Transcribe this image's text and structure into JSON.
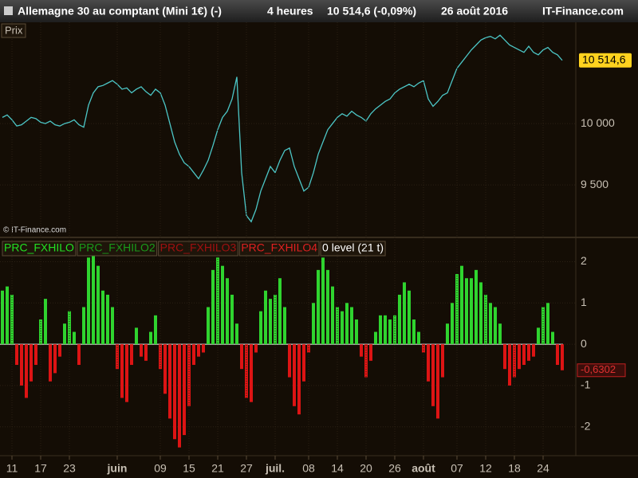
{
  "header": {
    "title": "Allemagne 30 au comptant (Mini 1€) (-)",
    "period": "4 heures",
    "quote": "10 514,6 (-0,09%)",
    "date": "26 août 2016",
    "brand": "IT-Finance.com"
  },
  "chart_data": [
    {
      "type": "line",
      "pane_label": "Prix",
      "copyright": "© IT-Finance.com",
      "color": "#4cc6c6",
      "last_value_label": "10 514,6",
      "ylim": [
        9085,
        10825
      ],
      "yticks": [
        {
          "value": 10000,
          "label": "10 000"
        },
        {
          "value": 9500,
          "label": "9 500"
        }
      ],
      "grid": true,
      "values": [
        10050,
        10070,
        10030,
        9980,
        9990,
        10020,
        10050,
        10040,
        10010,
        10000,
        10020,
        9990,
        9980,
        10000,
        10010,
        10030,
        9990,
        9970,
        10150,
        10250,
        10300,
        10310,
        10330,
        10350,
        10320,
        10280,
        10290,
        10250,
        10280,
        10300,
        10260,
        10230,
        10280,
        10250,
        10150,
        10000,
        9850,
        9750,
        9680,
        9650,
        9600,
        9550,
        9620,
        9700,
        9820,
        9950,
        10050,
        10100,
        10200,
        10380,
        9600,
        9250,
        9200,
        9300,
        9450,
        9550,
        9650,
        9600,
        9700,
        9780,
        9800,
        9650,
        9550,
        9450,
        9480,
        9600,
        9750,
        9850,
        9950,
        10000,
        10050,
        10080,
        10060,
        10100,
        10070,
        10050,
        10020,
        10080,
        10120,
        10150,
        10180,
        10200,
        10250,
        10280,
        10300,
        10320,
        10300,
        10330,
        10350,
        10200,
        10140,
        10180,
        10230,
        10250,
        10350,
        10450,
        10500,
        10550,
        10600,
        10640,
        10680,
        10700,
        10710,
        10690,
        10720,
        10680,
        10640,
        10620,
        10600,
        10580,
        10630,
        10580,
        10560,
        10600,
        10620,
        10580,
        10560,
        10515
      ]
    },
    {
      "type": "bar",
      "positive_color": "#2fd42f",
      "negative_color": "#dd1414",
      "zero_color": "#ffffff",
      "last_value_label": "-0,6302",
      "legend": [
        {
          "label": "PRC_FXHILO",
          "color": "#22e022"
        },
        {
          "label": "PRC_FXHILO2",
          "color": "#1a9a1a"
        },
        {
          "label": "PRC_FXHILO3",
          "color": "#a01010"
        },
        {
          "label": "PRC_FXHILO4",
          "color": "#e02020"
        },
        {
          "label": "0 level (21 t)",
          "color": "#ffffff"
        }
      ],
      "ylim": [
        -2.7,
        2.55
      ],
      "yticks": [
        2,
        1,
        0,
        -1,
        -2
      ],
      "grid": true,
      "xticks": [
        {
          "value": 2,
          "label": "11"
        },
        {
          "value": 8,
          "label": "17"
        },
        {
          "value": 14,
          "label": "23"
        },
        {
          "value": 24,
          "label": "juin"
        },
        {
          "value": 33,
          "label": "09"
        },
        {
          "value": 39,
          "label": "15"
        },
        {
          "value": 45,
          "label": "21"
        },
        {
          "value": 51,
          "label": "27"
        },
        {
          "value": 57,
          "label": "juil."
        },
        {
          "value": 64,
          "label": "08"
        },
        {
          "value": 70,
          "label": "14"
        },
        {
          "value": 76,
          "label": "20"
        },
        {
          "value": 82,
          "label": "26"
        },
        {
          "value": 88,
          "label": "août"
        },
        {
          "value": 95,
          "label": "07"
        },
        {
          "value": 101,
          "label": "12"
        },
        {
          "value": 107,
          "label": "18"
        },
        {
          "value": 113,
          "label": "24"
        }
      ],
      "values": [
        1.3,
        1.4,
        1.2,
        -0.5,
        -1.0,
        -1.3,
        -0.9,
        -0.5,
        0.6,
        1.1,
        -0.9,
        -0.7,
        -0.3,
        0.5,
        0.8,
        0.3,
        -0.5,
        0.9,
        2.1,
        2.3,
        1.9,
        1.3,
        1.2,
        0.9,
        -0.6,
        -1.3,
        -1.4,
        -0.5,
        0.4,
        -0.3,
        -0.4,
        0.3,
        0.7,
        -0.6,
        -1.2,
        -1.8,
        -2.3,
        -2.5,
        -2.2,
        -1.5,
        -0.5,
        -0.3,
        -0.2,
        0.9,
        1.8,
        2.1,
        1.9,
        1.6,
        1.2,
        0.5,
        -0.6,
        -1.3,
        -1.4,
        -0.2,
        0.8,
        1.3,
        1.1,
        1.2,
        1.6,
        0.9,
        -0.8,
        -1.5,
        -1.7,
        -0.9,
        -0.2,
        1.0,
        1.8,
        2.1,
        1.8,
        1.4,
        0.9,
        0.8,
        1.0,
        0.9,
        0.6,
        -0.3,
        -0.8,
        -0.4,
        0.3,
        0.7,
        0.7,
        0.6,
        0.7,
        1.2,
        1.5,
        1.3,
        0.6,
        0.3,
        -0.2,
        -0.9,
        -1.5,
        -1.8,
        -0.8,
        0.5,
        1.0,
        1.7,
        1.9,
        1.6,
        1.6,
        1.8,
        1.5,
        1.2,
        1.0,
        0.9,
        0.5,
        -0.6,
        -1.0,
        -0.8,
        -0.6,
        -0.5,
        -0.4,
        -0.3,
        0.4,
        0.9,
        1.0,
        0.3,
        -0.5,
        -0.6302
      ]
    }
  ]
}
